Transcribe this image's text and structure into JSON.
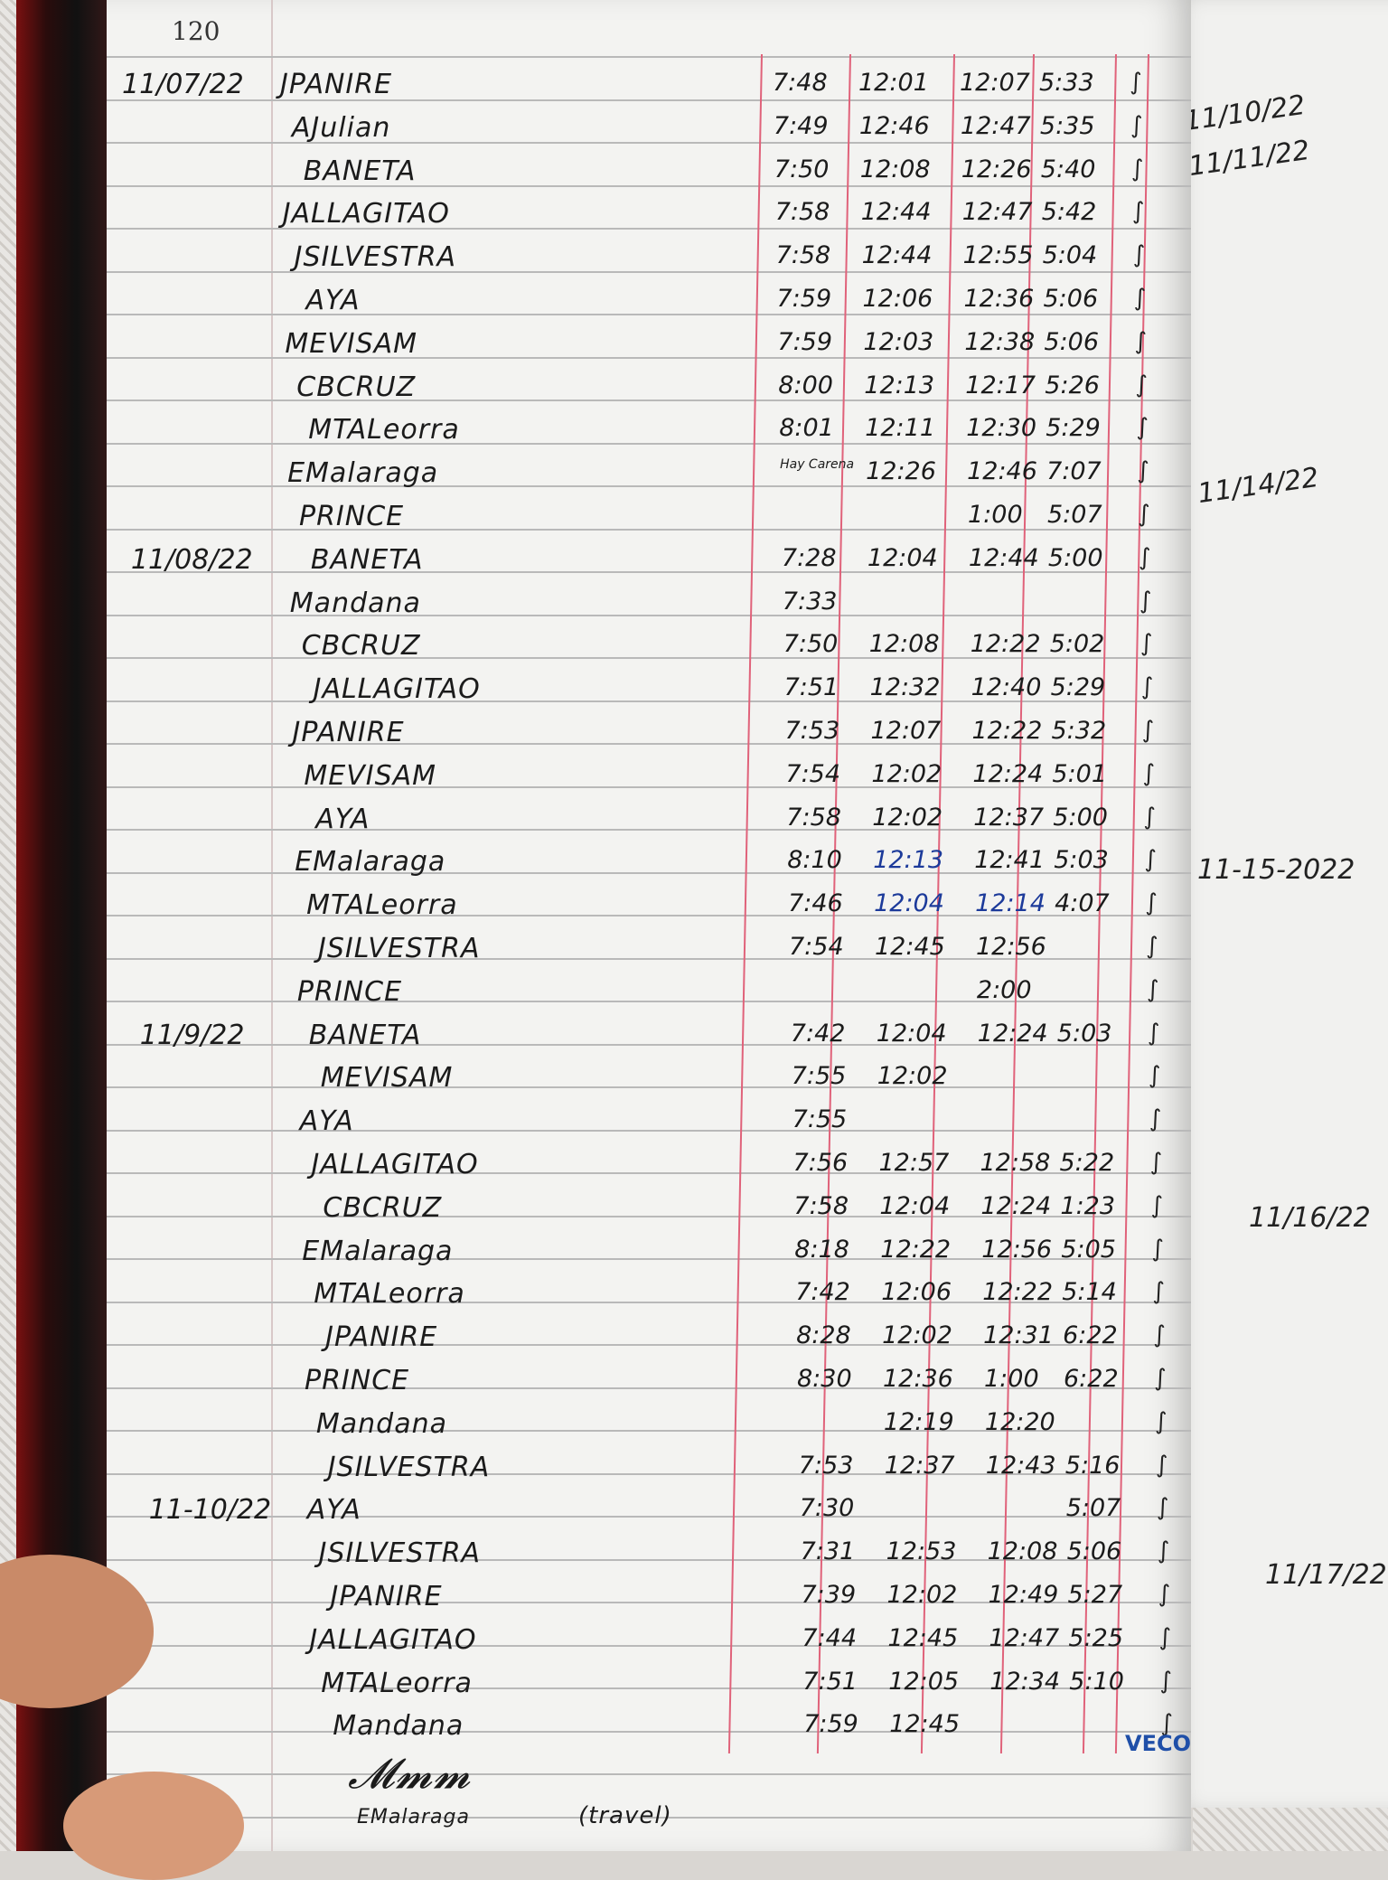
{
  "page_number": "120",
  "columns_note": [
    "time_in",
    "lunch_out",
    "lunch_in",
    "time_out"
  ],
  "entries": [
    {
      "date": "11/07/22",
      "name": "JPANIRE",
      "t": [
        "7:48",
        "12:01",
        "12:07",
        "5:33"
      ]
    },
    {
      "date": "",
      "name": "AJulian",
      "t": [
        "7:49",
        "12:46",
        "12:47",
        "5:35"
      ]
    },
    {
      "date": "",
      "name": "BANETA",
      "t": [
        "7:50",
        "12:08",
        "12:26",
        "5:40"
      ]
    },
    {
      "date": "",
      "name": "JALLAGITAO",
      "t": [
        "7:58",
        "12:44",
        "12:47",
        "5:42"
      ]
    },
    {
      "date": "",
      "name": "JSILVESTRA",
      "t": [
        "7:58",
        "12:44",
        "12:55",
        "5:04"
      ]
    },
    {
      "date": "",
      "name": "AYA",
      "t": [
        "7:59",
        "12:06",
        "12:36",
        "5:06"
      ]
    },
    {
      "date": "",
      "name": "MEVISAM",
      "t": [
        "7:59",
        "12:03",
        "12:38",
        "5:06"
      ]
    },
    {
      "date": "",
      "name": "CBCRUZ",
      "t": [
        "8:00",
        "12:13",
        "12:17",
        "5:26"
      ]
    },
    {
      "date": "",
      "name": "MTALeorra",
      "t": [
        "8:01",
        "12:11",
        "12:30",
        "5:29"
      ]
    },
    {
      "date": "",
      "name": "EMalaraga",
      "t": [
        "Hay Carena",
        "12:26",
        "12:46",
        "7:07"
      ]
    },
    {
      "date": "",
      "name": "PRINCE",
      "t": [
        "",
        "",
        "1:00",
        "5:07"
      ]
    },
    {
      "date": "11/08/22",
      "name": "BANETA",
      "t": [
        "7:28",
        "12:04",
        "12:44",
        "5:00"
      ]
    },
    {
      "date": "",
      "name": "Mandana",
      "t": [
        "7:33",
        "",
        "",
        ""
      ]
    },
    {
      "date": "",
      "name": "CBCRUZ",
      "t": [
        "7:50",
        "12:08",
        "12:22",
        "5:02"
      ]
    },
    {
      "date": "",
      "name": "JALLAGITAO",
      "t": [
        "7:51",
        "12:32",
        "12:40",
        "5:29"
      ]
    },
    {
      "date": "",
      "name": "JPANIRE",
      "t": [
        "7:53",
        "12:07",
        "12:22",
        "5:32"
      ]
    },
    {
      "date": "",
      "name": "MEVISAM",
      "t": [
        "7:54",
        "12:02",
        "12:24",
        "5:01"
      ]
    },
    {
      "date": "",
      "name": "AYA",
      "t": [
        "7:58",
        "12:02",
        "12:37",
        "5:00"
      ]
    },
    {
      "date": "",
      "name": "EMalaraga",
      "t": [
        "8:10",
        "12:13",
        "12:41",
        "5:03"
      ],
      "blue": [
        1
      ]
    },
    {
      "date": "",
      "name": "MTALeorra",
      "t": [
        "7:46",
        "12:04",
        "12:14",
        "4:07"
      ],
      "blue": [
        1,
        2
      ]
    },
    {
      "date": "",
      "name": "JSILVESTRA",
      "t": [
        "7:54",
        "12:45",
        "12:56",
        ""
      ]
    },
    {
      "date": "",
      "name": "PRINCE",
      "t": [
        "",
        "",
        "2:00",
        ""
      ]
    },
    {
      "date": "11/9/22",
      "name": "BANETA",
      "t": [
        "7:42",
        "12:04",
        "12:24",
        "5:03"
      ]
    },
    {
      "date": "",
      "name": "MEVISAM",
      "t": [
        "7:55",
        "12:02",
        "",
        ""
      ]
    },
    {
      "date": "",
      "name": "AYA",
      "t": [
        "7:55",
        "",
        "",
        ""
      ]
    },
    {
      "date": "",
      "name": "JALLAGITAO",
      "t": [
        "7:56",
        "12:57",
        "12:58",
        "5:22"
      ]
    },
    {
      "date": "",
      "name": "CBCRUZ",
      "t": [
        "7:58",
        "12:04",
        "12:24",
        "1:23"
      ]
    },
    {
      "date": "",
      "name": "EMalaraga",
      "t": [
        "8:18",
        "12:22",
        "12:56",
        "5:05"
      ]
    },
    {
      "date": "",
      "name": "MTALeorra",
      "t": [
        "7:42",
        "12:06",
        "12:22",
        "5:14"
      ]
    },
    {
      "date": "",
      "name": "JPANIRE",
      "t": [
        "8:28",
        "12:02",
        "12:31",
        "6:22"
      ]
    },
    {
      "date": "",
      "name": "PRINCE",
      "t": [
        "8:30",
        "12:36",
        "1:00",
        "6:22"
      ]
    },
    {
      "date": "",
      "name": "Mandana",
      "t": [
        "",
        "12:19",
        "12:20",
        ""
      ]
    },
    {
      "date": "",
      "name": "JSILVESTRA",
      "t": [
        "7:53",
        "12:37",
        "12:43",
        "5:16"
      ]
    },
    {
      "date": "11-10/22",
      "name": "AYA",
      "t": [
        "7:30",
        "",
        "",
        "5:07"
      ]
    },
    {
      "date": "",
      "name": "JSILVESTRA",
      "t": [
        "7:31",
        "12:53",
        "12:08",
        "5:06"
      ]
    },
    {
      "date": "",
      "name": "JPANIRE",
      "t": [
        "7:39",
        "12:02",
        "12:49",
        "5:27"
      ]
    },
    {
      "date": "",
      "name": "JALLAGITAO",
      "t": [
        "7:44",
        "12:45",
        "12:47",
        "5:25"
      ]
    },
    {
      "date": "",
      "name": "MTALeorra",
      "t": [
        "7:51",
        "12:05",
        "12:34",
        "5:10"
      ]
    },
    {
      "date": "",
      "name": "Mandana",
      "t": [
        "7:59",
        "12:45",
        "",
        ""
      ]
    }
  ],
  "footer": {
    "name": "EMalaraga",
    "note": "(travel)"
  },
  "stamp": "VECO",
  "right_page_dates": [
    "11/10/22",
    "11/11/22",
    "11/14/22",
    "11-15-2022",
    "11/16/22",
    "11/17/22"
  ],
  "colors": {
    "ink": "#1b1b1b",
    "blue_ink": "#1c3a9a",
    "column_rule": "#e0627a",
    "paper": "#f3f3f1"
  }
}
